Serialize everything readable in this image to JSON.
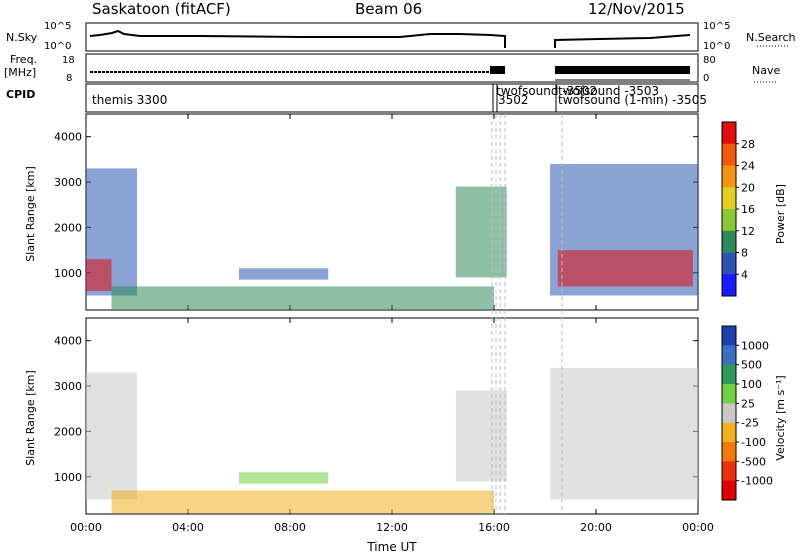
{
  "header": {
    "station": "Saskatoon (fitACF)",
    "beam": "Beam 06",
    "date": "12/Nov/2015"
  },
  "panels": {
    "nsky_label": "N.Sky",
    "nsky_ticks": [
      "10^5",
      "10^0"
    ],
    "nsearch_label": "N.Search",
    "nsearch_ticks": [
      "10^5",
      "10^0"
    ],
    "freq_label_1": "Freq.",
    "freq_label_2": "[MHz]",
    "freq_ticks": [
      "18",
      "8"
    ],
    "nave_label": "Nave",
    "nave_ticks": [
      "80",
      "0"
    ],
    "cpid_label": "CPID",
    "cpid_texts": [
      "themis 3300",
      "twofsound -3502",
      "3502",
      "twofsound -3503",
      "twofsound (1-min) -3505"
    ]
  },
  "chart_data": [
    {
      "type": "heatmap",
      "title": "",
      "xlabel": "",
      "ylabel": "Slant Range [km]",
      "ylim": [
        180,
        4500
      ],
      "y_ticks": [
        "1000",
        "2000",
        "3000",
        "4000"
      ],
      "x_ticks": [
        "00:00",
        "04:00",
        "08:00",
        "12:00",
        "16:00",
        "20:00",
        "00:00"
      ],
      "colorbar": {
        "label": "Power [dB]",
        "ticks": [
          "4",
          "8",
          "12",
          "16",
          "20",
          "24",
          "28"
        ],
        "colors": [
          "#1a1aff",
          "#2a55b0",
          "#2f8a5a",
          "#8cc63a",
          "#e0d020",
          "#f29418",
          "#ee5a10",
          "#e01010"
        ]
      },
      "regions": [
        {
          "t_start": 0.0,
          "t_end": 2.0,
          "r_start": 500,
          "r_end": 3300,
          "level": "low"
        },
        {
          "t_start": 0.0,
          "t_end": 1.0,
          "r_start": 600,
          "r_end": 1300,
          "level": "high"
        },
        {
          "t_start": 1.0,
          "t_end": 16.0,
          "r_start": 200,
          "r_end": 700,
          "level": "mid"
        },
        {
          "t_start": 6.0,
          "t_end": 9.5,
          "r_start": 850,
          "r_end": 1100,
          "level": "low"
        },
        {
          "t_start": 14.5,
          "t_end": 16.5,
          "r_start": 900,
          "r_end": 2900,
          "level": "mid"
        },
        {
          "t_start": 18.2,
          "t_end": 24.0,
          "r_start": 500,
          "r_end": 3400,
          "level": "low"
        },
        {
          "t_start": 18.5,
          "t_end": 23.8,
          "r_start": 700,
          "r_end": 1500,
          "level": "high"
        }
      ]
    },
    {
      "type": "heatmap",
      "title": "",
      "xlabel": "Time UT",
      "ylabel": "Slant Range [km]",
      "ylim": [
        180,
        4500
      ],
      "y_ticks": [
        "1000",
        "2000",
        "3000",
        "4000"
      ],
      "x_ticks": [
        "00:00",
        "04:00",
        "08:00",
        "12:00",
        "16:00",
        "20:00",
        "00:00"
      ],
      "colorbar": {
        "label": "Velocity [m s⁻¹]",
        "ticks": [
          "1000",
          "500",
          "100",
          "25",
          "-25",
          "-100",
          "-500",
          "-1000"
        ],
        "colors": [
          "#1f3fb0",
          "#3b6fc2",
          "#2f9a5a",
          "#6fd040",
          "#c8c8c8",
          "#f0b020",
          "#f07a10",
          "#e83010",
          "#e00000"
        ]
      },
      "regions": [
        {
          "t_start": 0.0,
          "t_end": 2.0,
          "r_start": 500,
          "r_end": 3300,
          "level": "gray"
        },
        {
          "t_start": 1.0,
          "t_end": 16.0,
          "r_start": 200,
          "r_end": 700,
          "level": "orange"
        },
        {
          "t_start": 6.0,
          "t_end": 9.5,
          "r_start": 850,
          "r_end": 1100,
          "level": "green"
        },
        {
          "t_start": 14.5,
          "t_end": 16.5,
          "r_start": 900,
          "r_end": 2900,
          "level": "gray"
        },
        {
          "t_start": 18.2,
          "t_end": 24.0,
          "r_start": 500,
          "r_end": 3400,
          "level": "gray"
        }
      ]
    }
  ]
}
